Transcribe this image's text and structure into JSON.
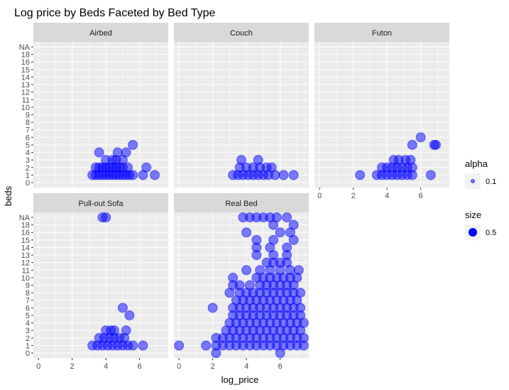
{
  "chart_data": {
    "type": "scatter",
    "title": "Log price by Beds Faceted by Bed Type",
    "xlabel": "log_price",
    "ylabel": "beds",
    "xlim": [
      -0.3,
      7.7
    ],
    "x_ticks": [
      "0",
      "2",
      "4",
      "6"
    ],
    "x_tick_values": [
      0,
      2,
      4,
      6
    ],
    "y_ticks": [
      "0",
      "1",
      "2",
      "3",
      "4",
      "5",
      "6",
      "7",
      "8",
      "9",
      "10",
      "11",
      "12",
      "13",
      "14",
      "15",
      "16",
      "18",
      "NA"
    ],
    "grid": true,
    "point_color": "#0000ff",
    "panel_background": "#ebebeb",
    "strip_background": "#d9d9d9",
    "legend_position": "right",
    "legends": [
      {
        "title": "alpha",
        "label": "0.1"
      },
      {
        "title": "size",
        "label": "0.5"
      }
    ],
    "facets": [
      {
        "name": "Airbed",
        "points": [
          [
            3.2,
            1
          ],
          [
            3.4,
            1
          ],
          [
            3.6,
            1
          ],
          [
            3.8,
            1
          ],
          [
            4.0,
            1
          ],
          [
            4.2,
            1
          ],
          [
            4.4,
            1
          ],
          [
            4.6,
            1
          ],
          [
            4.8,
            1
          ],
          [
            5.0,
            1
          ],
          [
            5.2,
            1
          ],
          [
            5.4,
            1
          ],
          [
            5.6,
            1
          ],
          [
            6.2,
            1
          ],
          [
            6.9,
            1
          ],
          [
            3.4,
            2
          ],
          [
            3.6,
            2
          ],
          [
            3.8,
            2
          ],
          [
            4.0,
            2
          ],
          [
            4.2,
            2
          ],
          [
            4.4,
            2
          ],
          [
            4.6,
            2
          ],
          [
            4.8,
            2
          ],
          [
            5.0,
            2
          ],
          [
            5.3,
            2
          ],
          [
            6.4,
            2
          ],
          [
            4.0,
            3
          ],
          [
            4.4,
            3
          ],
          [
            4.6,
            3
          ],
          [
            5.0,
            3
          ],
          [
            3.6,
            4
          ],
          [
            4.7,
            4
          ],
          [
            5.2,
            4
          ],
          [
            5.6,
            5
          ]
        ]
      },
      {
        "name": "Couch",
        "points": [
          [
            3.2,
            1
          ],
          [
            3.5,
            1
          ],
          [
            3.8,
            1
          ],
          [
            4.1,
            1
          ],
          [
            4.4,
            1
          ],
          [
            4.7,
            1
          ],
          [
            5.0,
            1
          ],
          [
            5.3,
            1
          ],
          [
            5.7,
            1
          ],
          [
            6.2,
            1
          ],
          [
            6.8,
            1
          ],
          [
            3.6,
            2
          ],
          [
            4.0,
            2
          ],
          [
            4.4,
            2
          ],
          [
            4.8,
            2
          ],
          [
            5.2,
            2
          ],
          [
            5.5,
            2
          ],
          [
            3.7,
            3
          ],
          [
            4.7,
            3
          ]
        ]
      },
      {
        "name": "Futon",
        "points": [
          [
            2.4,
            1
          ],
          [
            3.4,
            1
          ],
          [
            3.7,
            1
          ],
          [
            4.0,
            1
          ],
          [
            4.3,
            1
          ],
          [
            4.6,
            1
          ],
          [
            4.9,
            1
          ],
          [
            5.2,
            1
          ],
          [
            5.5,
            1
          ],
          [
            6.6,
            1
          ],
          [
            3.7,
            2
          ],
          [
            4.0,
            2
          ],
          [
            4.3,
            2
          ],
          [
            4.6,
            2
          ],
          [
            4.9,
            2
          ],
          [
            5.2,
            2
          ],
          [
            5.5,
            2
          ],
          [
            4.4,
            3
          ],
          [
            4.7,
            3
          ],
          [
            5.1,
            3
          ],
          [
            5.4,
            3
          ],
          [
            5.5,
            5
          ],
          [
            6.0,
            6
          ],
          [
            6.8,
            5
          ],
          [
            6.9,
            5
          ]
        ]
      },
      {
        "name": "Pull-out Sofa",
        "points": [
          [
            3.2,
            1
          ],
          [
            3.5,
            1
          ],
          [
            3.8,
            1
          ],
          [
            4.1,
            1
          ],
          [
            4.4,
            1
          ],
          [
            4.7,
            1
          ],
          [
            5.0,
            1
          ],
          [
            5.3,
            1
          ],
          [
            5.6,
            1
          ],
          [
            6.2,
            1
          ],
          [
            3.6,
            2
          ],
          [
            3.9,
            2
          ],
          [
            4.2,
            2
          ],
          [
            4.5,
            2
          ],
          [
            4.8,
            2
          ],
          [
            5.1,
            2
          ],
          [
            4.0,
            3
          ],
          [
            4.3,
            3
          ],
          [
            4.5,
            3
          ],
          [
            5.2,
            3
          ],
          [
            5.4,
            5
          ],
          [
            5.0,
            6
          ],
          [
            4.0,
            "NA"
          ],
          [
            3.8,
            "NA"
          ]
        ]
      },
      {
        "name": "Real Bed",
        "points": [
          [
            0.0,
            1
          ],
          [
            1.6,
            1
          ],
          [
            2.2,
            1
          ],
          [
            2.6,
            1
          ],
          [
            3.0,
            1
          ],
          [
            3.4,
            1
          ],
          [
            3.8,
            1
          ],
          [
            4.2,
            1
          ],
          [
            4.6,
            1
          ],
          [
            5.0,
            1
          ],
          [
            5.4,
            1
          ],
          [
            5.8,
            1
          ],
          [
            6.2,
            1
          ],
          [
            6.6,
            1
          ],
          [
            7.0,
            1
          ],
          [
            7.4,
            1
          ],
          [
            2.2,
            0
          ],
          [
            6.0,
            0
          ],
          [
            2.2,
            2
          ],
          [
            2.6,
            2
          ],
          [
            3.0,
            2
          ],
          [
            3.4,
            2
          ],
          [
            3.8,
            2
          ],
          [
            4.2,
            2
          ],
          [
            4.6,
            2
          ],
          [
            5.0,
            2
          ],
          [
            5.4,
            2
          ],
          [
            5.8,
            2
          ],
          [
            6.2,
            2
          ],
          [
            6.6,
            2
          ],
          [
            7.0,
            2
          ],
          [
            7.4,
            2
          ],
          [
            2.0,
            6
          ],
          [
            2.8,
            3
          ],
          [
            3.2,
            3
          ],
          [
            3.6,
            3
          ],
          [
            4.0,
            3
          ],
          [
            4.4,
            3
          ],
          [
            4.8,
            3
          ],
          [
            5.2,
            3
          ],
          [
            5.6,
            3
          ],
          [
            6.0,
            3
          ],
          [
            6.4,
            3
          ],
          [
            6.8,
            3
          ],
          [
            7.2,
            3
          ],
          [
            3.0,
            4
          ],
          [
            3.4,
            4
          ],
          [
            3.8,
            4
          ],
          [
            4.2,
            4
          ],
          [
            4.6,
            4
          ],
          [
            5.0,
            4
          ],
          [
            5.4,
            4
          ],
          [
            5.8,
            4
          ],
          [
            6.2,
            4
          ],
          [
            6.6,
            4
          ],
          [
            7.0,
            4
          ],
          [
            7.4,
            4
          ],
          [
            3.2,
            5
          ],
          [
            3.6,
            5
          ],
          [
            4.0,
            5
          ],
          [
            4.4,
            5
          ],
          [
            4.8,
            5
          ],
          [
            5.2,
            5
          ],
          [
            5.6,
            5
          ],
          [
            6.0,
            5
          ],
          [
            6.4,
            5
          ],
          [
            6.8,
            5
          ],
          [
            7.2,
            5
          ],
          [
            3.2,
            6
          ],
          [
            3.6,
            6
          ],
          [
            4.0,
            6
          ],
          [
            4.4,
            6
          ],
          [
            4.8,
            6
          ],
          [
            5.2,
            6
          ],
          [
            5.6,
            6
          ],
          [
            6.0,
            6
          ],
          [
            6.4,
            6
          ],
          [
            6.8,
            6
          ],
          [
            7.2,
            6
          ],
          [
            3.4,
            7
          ],
          [
            3.8,
            7
          ],
          [
            4.2,
            7
          ],
          [
            4.6,
            7
          ],
          [
            5.0,
            7
          ],
          [
            5.4,
            7
          ],
          [
            5.8,
            7
          ],
          [
            6.2,
            7
          ],
          [
            6.6,
            7
          ],
          [
            7.0,
            7
          ],
          [
            3.0,
            8
          ],
          [
            3.6,
            8
          ],
          [
            4.0,
            8
          ],
          [
            4.4,
            8
          ],
          [
            4.8,
            8
          ],
          [
            5.2,
            8
          ],
          [
            5.6,
            8
          ],
          [
            6.0,
            8
          ],
          [
            6.4,
            8
          ],
          [
            6.8,
            8
          ],
          [
            7.2,
            8
          ],
          [
            3.2,
            9
          ],
          [
            3.6,
            9
          ],
          [
            4.2,
            9
          ],
          [
            4.8,
            9
          ],
          [
            5.2,
            9
          ],
          [
            5.6,
            9
          ],
          [
            6.0,
            9
          ],
          [
            6.4,
            9
          ],
          [
            6.8,
            9
          ],
          [
            3.2,
            10
          ],
          [
            4.6,
            10
          ],
          [
            5.0,
            10
          ],
          [
            5.4,
            10
          ],
          [
            5.8,
            10
          ],
          [
            6.2,
            10
          ],
          [
            6.6,
            10
          ],
          [
            7.0,
            10
          ],
          [
            4.0,
            11
          ],
          [
            4.8,
            11
          ],
          [
            5.4,
            11
          ],
          [
            6.0,
            11
          ],
          [
            6.6,
            11
          ],
          [
            7.1,
            11
          ],
          [
            5.2,
            12
          ],
          [
            5.6,
            12
          ],
          [
            6.0,
            12
          ],
          [
            6.4,
            12
          ],
          [
            4.6,
            13
          ],
          [
            5.6,
            13
          ],
          [
            6.4,
            13
          ],
          [
            4.6,
            14
          ],
          [
            5.4,
            14
          ],
          [
            6.4,
            14
          ],
          [
            4.6,
            15
          ],
          [
            5.6,
            15
          ],
          [
            6.8,
            15
          ],
          [
            4.0,
            16
          ],
          [
            6.0,
            16
          ],
          [
            6.6,
            16
          ],
          [
            5.6,
            18
          ],
          [
            6.8,
            18
          ],
          [
            3.8,
            "NA"
          ],
          [
            4.2,
            "NA"
          ],
          [
            4.6,
            "NA"
          ],
          [
            5.0,
            "NA"
          ],
          [
            5.4,
            "NA"
          ],
          [
            5.8,
            "NA"
          ],
          [
            6.4,
            "NA"
          ]
        ]
      }
    ]
  }
}
